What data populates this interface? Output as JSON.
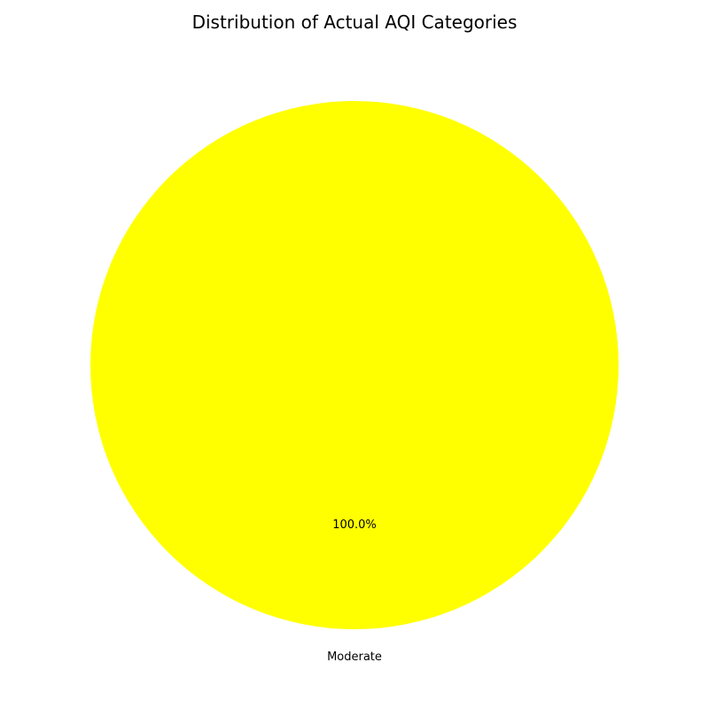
{
  "chart_data": {
    "type": "pie",
    "title": "Distribution of Actual AQI Categories",
    "categories": [
      "Moderate"
    ],
    "values": [
      100.0
    ],
    "percent_labels": [
      "100.0%"
    ],
    "colors": [
      "#ffff00"
    ],
    "start_angle_deg": 90,
    "direction": "counterclockwise"
  }
}
